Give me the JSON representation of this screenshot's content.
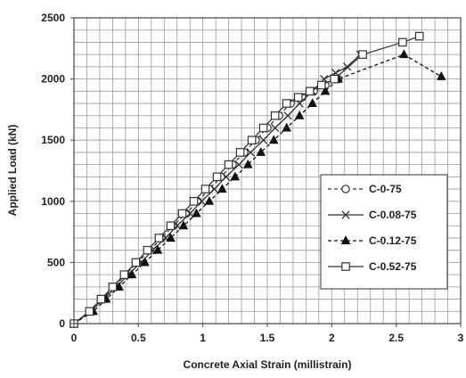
{
  "chart_data": {
    "type": "line",
    "title": "",
    "xlabel": "Concrete Axial Strain (millistrain)",
    "ylabel": "Applied Load (kN)",
    "xlim": [
      0,
      3
    ],
    "ylim": [
      0,
      2500
    ],
    "xticks": [
      0,
      0.5,
      1,
      1.5,
      2,
      2.5,
      3
    ],
    "xtick_labels": [
      "0",
      "0.5",
      "1",
      "1.5",
      "2",
      "2.5",
      "3"
    ],
    "yticks": [
      0,
      500,
      1000,
      1500,
      2000,
      2500
    ],
    "ytick_labels": [
      "0",
      "500",
      "1000",
      "1500",
      "2000",
      "2500"
    ],
    "x_minor_step": 0.1,
    "y_minor_step": 100,
    "grid": true,
    "legend_position": "lower-right",
    "series": [
      {
        "name": "C-0-75",
        "line_style": "dashed",
        "marker": "circle",
        "color": "#333333",
        "x": [
          0,
          0.12,
          0.22,
          0.31,
          0.4,
          0.49,
          0.59,
          0.68,
          0.77,
          0.87,
          0.96,
          1.05,
          1.14,
          1.23,
          1.32,
          1.41,
          1.5,
          1.59,
          1.68,
          1.77,
          1.86,
          1.95,
          2.05
        ],
        "y": [
          0,
          100,
          200,
          300,
          400,
          500,
          600,
          700,
          800,
          900,
          1000,
          1100,
          1200,
          1300,
          1400,
          1500,
          1600,
          1700,
          1800,
          1850,
          1900,
          1950,
          2000
        ]
      },
      {
        "name": "C-0.08-75",
        "line_style": "solid",
        "marker": "x",
        "color": "#333333",
        "x": [
          0,
          0.13,
          0.23,
          0.33,
          0.42,
          0.52,
          0.61,
          0.71,
          0.8,
          0.9,
          0.99,
          1.09,
          1.18,
          1.28,
          1.37,
          1.47,
          1.56,
          1.66,
          1.75,
          1.85,
          1.94,
          2.03,
          2.12,
          2.22
        ],
        "y": [
          0,
          100,
          200,
          300,
          400,
          500,
          600,
          700,
          800,
          900,
          1000,
          1100,
          1200,
          1300,
          1400,
          1500,
          1600,
          1700,
          1800,
          1900,
          2000,
          2050,
          2100,
          2200
        ]
      },
      {
        "name": "C-0.12-75",
        "line_style": "dashed",
        "marker": "triangle",
        "color": "#111111",
        "x": [
          0,
          0.15,
          0.25,
          0.35,
          0.45,
          0.55,
          0.65,
          0.75,
          0.85,
          0.95,
          1.05,
          1.15,
          1.25,
          1.35,
          1.45,
          1.55,
          1.65,
          1.75,
          1.85,
          1.95,
          2.05,
          2.56,
          2.85
        ],
        "y": [
          0,
          100,
          200,
          300,
          400,
          500,
          600,
          700,
          800,
          900,
          1000,
          1100,
          1200,
          1300,
          1400,
          1500,
          1600,
          1700,
          1800,
          1900,
          2000,
          2200,
          2020
        ]
      },
      {
        "name": "C-0.52-75",
        "line_style": "solid",
        "marker": "square",
        "color": "#333333",
        "x": [
          0,
          0.12,
          0.21,
          0.3,
          0.39,
          0.48,
          0.57,
          0.66,
          0.75,
          0.84,
          0.93,
          1.02,
          1.11,
          1.2,
          1.29,
          1.38,
          1.47,
          1.56,
          1.65,
          1.74,
          1.83,
          1.92,
          2.02,
          2.24,
          2.55,
          2.68
        ],
        "y": [
          0,
          100,
          200,
          300,
          400,
          500,
          600,
          700,
          800,
          900,
          1000,
          1100,
          1200,
          1300,
          1400,
          1500,
          1600,
          1700,
          1800,
          1850,
          1900,
          1950,
          2000,
          2200,
          2300,
          2350
        ]
      }
    ]
  }
}
